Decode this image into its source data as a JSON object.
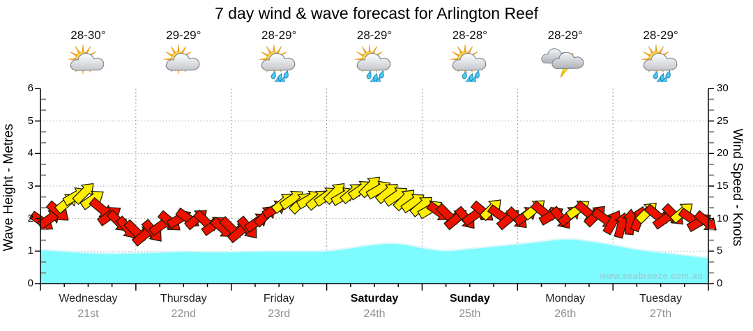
{
  "watermark": "www.seabreeze.com.au",
  "colors": {
    "arrow_red": "#ee1100",
    "arrow_yellow": "#ffee00",
    "arrow_outline": "#181800",
    "wave_fill": "#7dfbff",
    "wave_edge": "#dcf7fa",
    "grid": "#aaaaaa",
    "day_grid": "#999999",
    "axis": "#000000",
    "minor_tick": "#8a8a8a",
    "date_gray": "#8f8f8f",
    "watermark_gray": "#9cc7ce"
  },
  "chart_data": {
    "type": "area",
    "title": "7 day wind & wave forecast for Arlington Reef",
    "left_axis": {
      "label": "Wave Height - Metres",
      "min": 0,
      "max": 6,
      "tick_step": 1
    },
    "right_axis": {
      "label": "Wind Speed - Knots",
      "min": 0,
      "max": 30,
      "tick_step": 5
    },
    "legend": "none",
    "grid": "dotted horizontal at each tick, dotted vertical at day boundaries",
    "days": [
      {
        "name": "Wednesday",
        "date": "21st",
        "temp": "28-30°",
        "icon": "sun-cloud",
        "bold": false
      },
      {
        "name": "Thursday",
        "date": "22nd",
        "temp": "29-29°",
        "icon": "sun-cloud",
        "bold": false
      },
      {
        "name": "Friday",
        "date": "23rd",
        "temp": "28-29°",
        "icon": "sun-cloud-rain",
        "bold": false
      },
      {
        "name": "Saturday",
        "date": "24th",
        "temp": "28-29°",
        "icon": "sun-cloud-rain",
        "bold": true
      },
      {
        "name": "Sunday",
        "date": "25th",
        "temp": "28-28°",
        "icon": "sun-cloud-rain",
        "bold": true
      },
      {
        "name": "Monday",
        "date": "26th",
        "temp": "28-29°",
        "icon": "storm",
        "bold": false
      },
      {
        "name": "Tuesday",
        "date": "27th",
        "temp": "28-29°",
        "icon": "sun-cloud-rain",
        "bold": false
      }
    ],
    "wave_height_m": {
      "t_step_days": 0.25,
      "values": [
        1.05,
        1.0,
        0.95,
        0.93,
        0.95,
        0.97,
        1.0,
        0.98,
        0.98,
        1.0,
        1.0,
        1.0,
        1.0,
        1.1,
        1.22,
        1.26,
        1.1,
        1.0,
        1.08,
        1.15,
        1.22,
        1.3,
        1.4,
        1.32,
        1.2,
        1.05,
        0.97,
        0.88,
        0.8
      ]
    },
    "wind_arrows": [
      [
        0.02,
        9.5,
        35,
        "r"
      ],
      [
        0.1,
        10,
        -35,
        "r"
      ],
      [
        0.19,
        11,
        40,
        "r"
      ],
      [
        0.28,
        12.5,
        -40,
        "y"
      ],
      [
        0.37,
        13.5,
        -30,
        "y"
      ],
      [
        0.46,
        14,
        -45,
        "y"
      ],
      [
        0.55,
        13,
        -35,
        "y"
      ],
      [
        0.64,
        11.5,
        40,
        "r"
      ],
      [
        0.73,
        10.5,
        -35,
        "r"
      ],
      [
        0.82,
        9.5,
        45,
        "r"
      ],
      [
        0.91,
        8.5,
        50,
        "r"
      ],
      [
        1.0,
        8,
        45,
        "r"
      ],
      [
        1.09,
        7.5,
        -40,
        "r"
      ],
      [
        1.18,
        8,
        50,
        "r"
      ],
      [
        1.27,
        9,
        -35,
        "r"
      ],
      [
        1.36,
        9.5,
        40,
        "r"
      ],
      [
        1.46,
        10,
        -30,
        "r"
      ],
      [
        1.55,
        10,
        35,
        "r"
      ],
      [
        1.64,
        10,
        -40,
        "r"
      ],
      [
        1.73,
        9.5,
        45,
        "r"
      ],
      [
        1.82,
        9,
        -35,
        "r"
      ],
      [
        1.91,
        8.5,
        40,
        "r"
      ],
      [
        2.0,
        8.5,
        45,
        "r"
      ],
      [
        2.09,
        8,
        -40,
        "r"
      ],
      [
        2.18,
        8.5,
        50,
        "r"
      ],
      [
        2.27,
        9.5,
        -35,
        "r"
      ],
      [
        2.36,
        10.5,
        -45,
        "r"
      ],
      [
        2.46,
        11.5,
        -30,
        "r"
      ],
      [
        2.55,
        12.5,
        -40,
        "y"
      ],
      [
        2.64,
        13,
        -35,
        "y"
      ],
      [
        2.73,
        12.5,
        -45,
        "y"
      ],
      [
        2.82,
        13,
        -30,
        "y"
      ],
      [
        2.91,
        13,
        -40,
        "y"
      ],
      [
        3.0,
        13.5,
        -35,
        "y"
      ],
      [
        3.09,
        14,
        -45,
        "y"
      ],
      [
        3.18,
        13.5,
        -30,
        "y"
      ],
      [
        3.27,
        14,
        -40,
        "y"
      ],
      [
        3.36,
        14.5,
        -35,
        "y"
      ],
      [
        3.46,
        15,
        -45,
        "y"
      ],
      [
        3.55,
        14.5,
        -30,
        "y"
      ],
      [
        3.64,
        14,
        -40,
        "y"
      ],
      [
        3.73,
        13.5,
        -35,
        "y"
      ],
      [
        3.82,
        13,
        -45,
        "y"
      ],
      [
        3.91,
        12.5,
        -35,
        "y"
      ],
      [
        4.0,
        12,
        -40,
        "y"
      ],
      [
        4.09,
        11.5,
        -30,
        "y"
      ],
      [
        4.18,
        11,
        35,
        "r"
      ],
      [
        4.27,
        10.5,
        45,
        "r"
      ],
      [
        4.36,
        10,
        -40,
        "r"
      ],
      [
        4.46,
        10,
        50,
        "r"
      ],
      [
        4.55,
        10.5,
        -35,
        "r"
      ],
      [
        4.64,
        11,
        40,
        "r"
      ],
      [
        4.73,
        11.5,
        -45,
        "y"
      ],
      [
        4.82,
        10.5,
        35,
        "r"
      ],
      [
        4.91,
        10,
        -40,
        "r"
      ],
      [
        5.0,
        10,
        45,
        "r"
      ],
      [
        5.09,
        10.5,
        -35,
        "r"
      ],
      [
        5.18,
        11.5,
        -40,
        "y"
      ],
      [
        5.27,
        11,
        40,
        "r"
      ],
      [
        5.36,
        10.5,
        -30,
        "r"
      ],
      [
        5.46,
        10,
        50,
        "r"
      ],
      [
        5.55,
        10.5,
        -40,
        "r"
      ],
      [
        5.64,
        11.5,
        -35,
        "y"
      ],
      [
        5.73,
        11,
        40,
        "r"
      ],
      [
        5.82,
        10.5,
        -45,
        "r"
      ],
      [
        5.91,
        10,
        35,
        "r"
      ],
      [
        6.0,
        9.5,
        -60,
        "r"
      ],
      [
        6.09,
        9,
        -75,
        "r"
      ],
      [
        6.18,
        9.5,
        -85,
        "r"
      ],
      [
        6.27,
        10,
        -70,
        "r"
      ],
      [
        6.36,
        11,
        -45,
        "y"
      ],
      [
        6.46,
        10.5,
        40,
        "r"
      ],
      [
        6.55,
        10,
        -35,
        "r"
      ],
      [
        6.64,
        10.5,
        45,
        "r"
      ],
      [
        6.73,
        11,
        -40,
        "y"
      ],
      [
        6.82,
        10,
        35,
        "r"
      ],
      [
        6.91,
        9.5,
        -30,
        "r"
      ],
      [
        6.98,
        9.5,
        40,
        "r"
      ]
    ]
  }
}
